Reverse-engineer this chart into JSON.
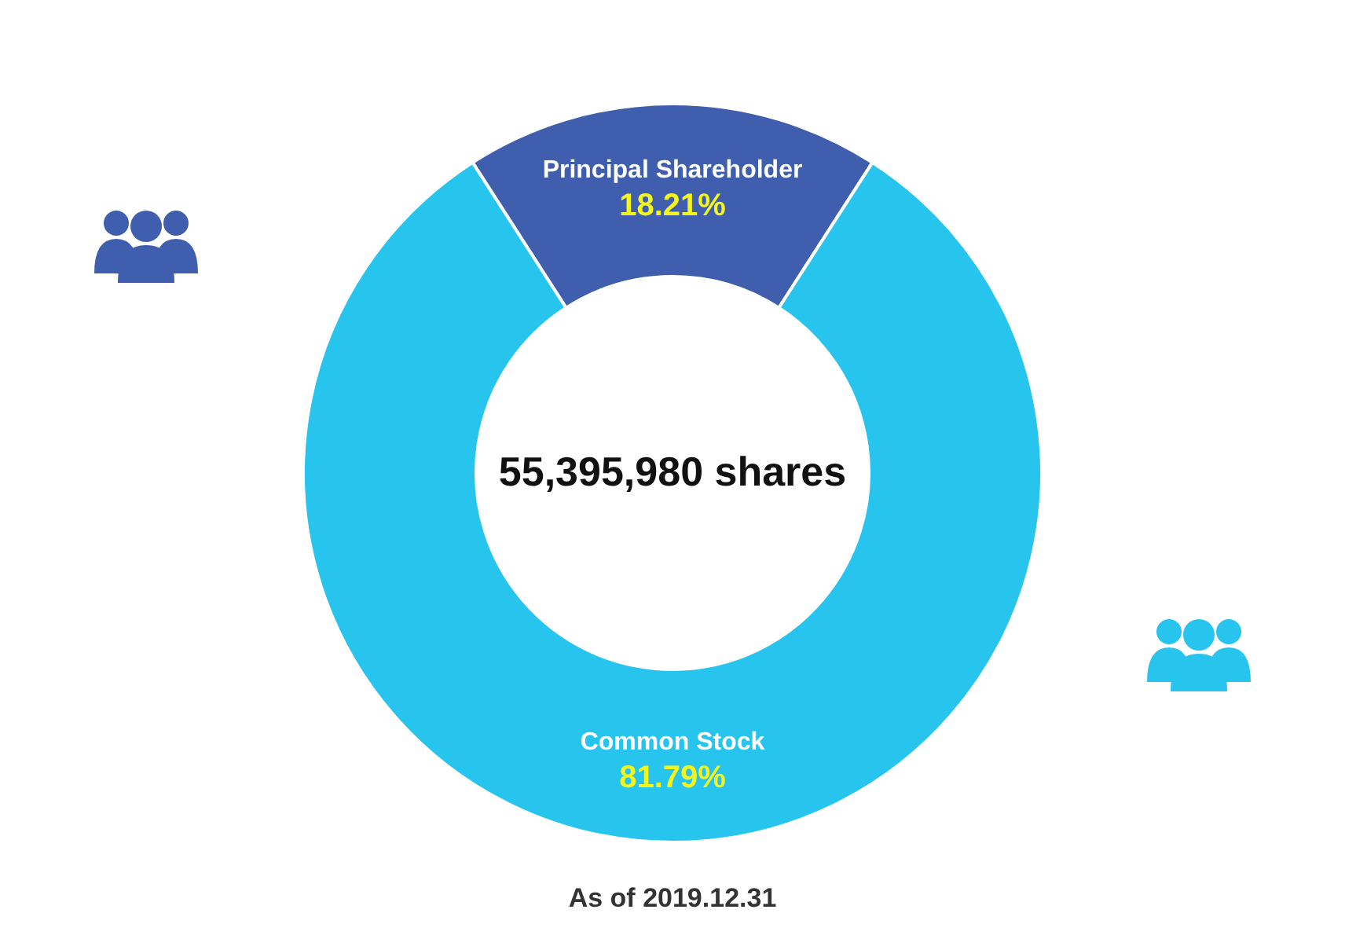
{
  "chart_data": {
    "type": "donut",
    "categories": [
      "Principal Shareholder",
      "Common Stock"
    ],
    "values": [
      18.21,
      81.79
    ],
    "colors": [
      "#3f5fae",
      "#27c4ee"
    ],
    "value_labels": [
      "18.21%",
      "81.79%"
    ],
    "annotations": [
      "55,395,980 shares",
      "As of 2019.12.31"
    ]
  }
}
